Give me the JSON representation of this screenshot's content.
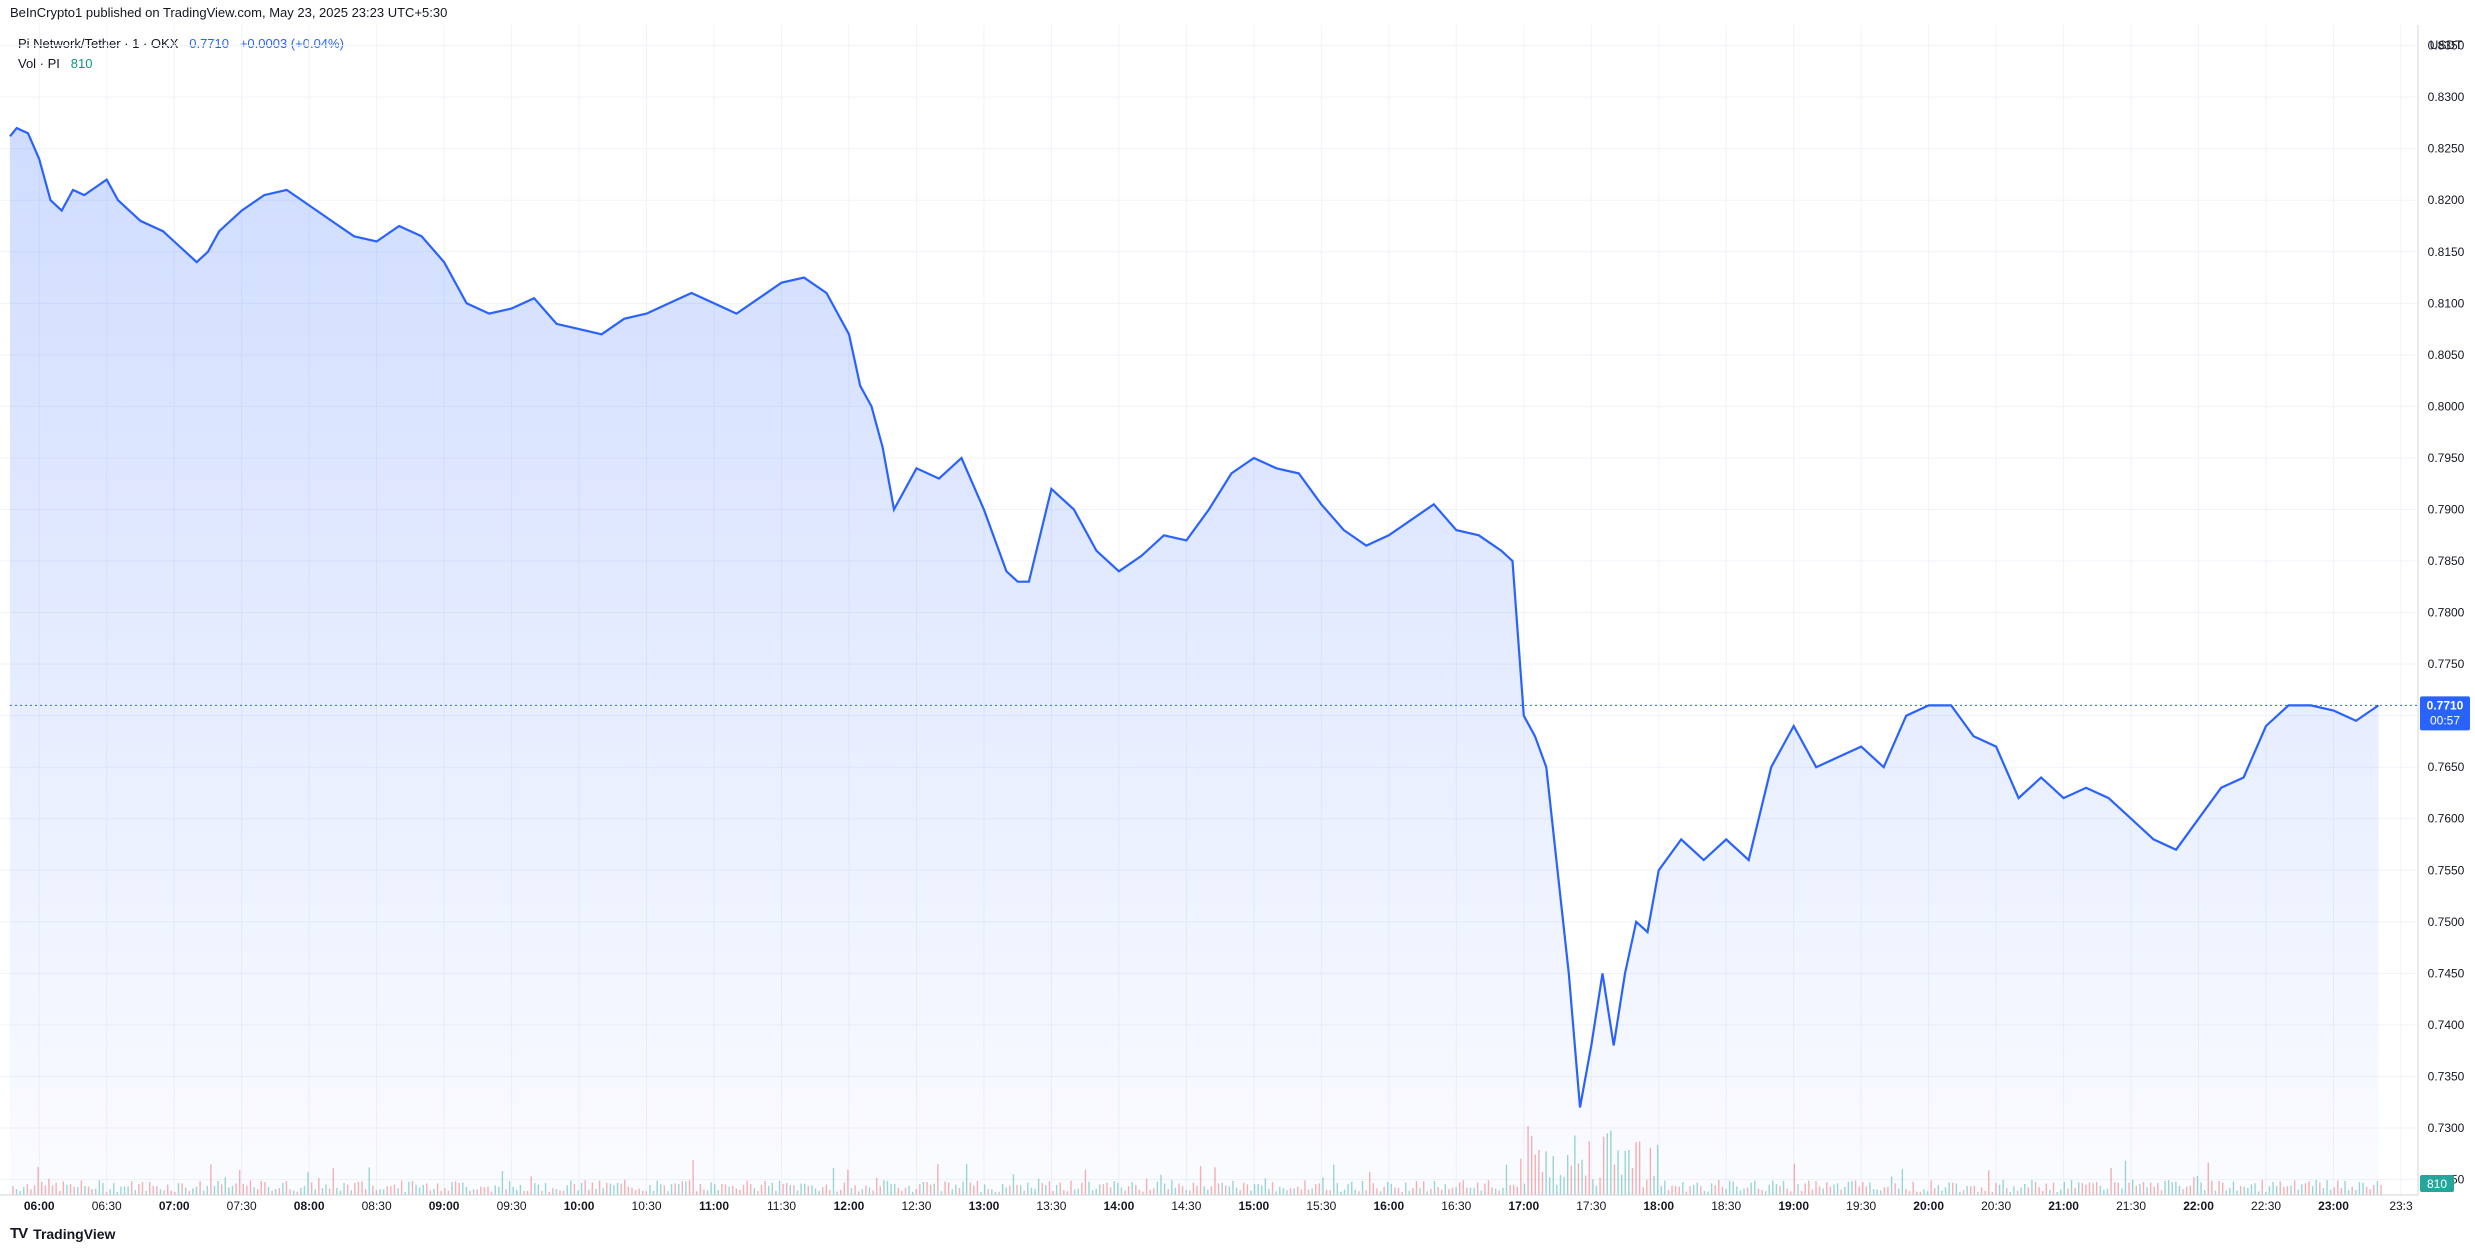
{
  "header": {
    "published": "BeInCrypto1 published on TradingView.com, May 23, 2025 23:23 UTC+5:30"
  },
  "legend": {
    "symbol": "Pi Network/Tether · 1 · OKX",
    "last": "0.7710",
    "change": "+0.0003 (+0.04%)",
    "vol_label": "Vol · PI",
    "vol_value": "810"
  },
  "footer": {
    "brand": "TradingView",
    "logo_mark": "TV"
  },
  "axis": {
    "currency": "USDT"
  },
  "badges": {
    "price": "0.7710",
    "countdown": "00:57",
    "volume": "810"
  },
  "colors": {
    "line": "#2962ff",
    "vol_up": "#26a69a",
    "vol_down": "#ef5350"
  },
  "chart_data": {
    "type": "area",
    "y_ticks": [
      "0.8350",
      "0.8300",
      "0.8250",
      "0.8200",
      "0.8150",
      "0.8100",
      "0.8050",
      "0.8000",
      "0.7950",
      "0.7900",
      "0.7850",
      "0.7800",
      "0.7750",
      "0.7700",
      "0.7650",
      "0.7600",
      "0.7550",
      "0.7500",
      "0.7450",
      "0.7400",
      "0.7350",
      "0.7300",
      "0.7250"
    ],
    "x_ticks": [
      "06:00",
      "06:30",
      "07:00",
      "07:30",
      "08:00",
      "08:30",
      "09:00",
      "09:30",
      "10:00",
      "10:30",
      "11:00",
      "11:30",
      "12:00",
      "12:30",
      "13:00",
      "13:30",
      "14:00",
      "14:30",
      "15:00",
      "15:30",
      "16:00",
      "16:30",
      "17:00",
      "17:30",
      "18:00",
      "18:30",
      "19:00",
      "19:30",
      "20:00",
      "20:30",
      "21:00",
      "21:30",
      "22:00",
      "22:30",
      "23:00",
      "23:3"
    ],
    "ylim": [
      0.7235,
      0.837
    ],
    "xlim": [
      "05:47",
      "23:34"
    ],
    "grid": true,
    "current_price": 0.771,
    "series": [
      {
        "x": [
          "05:45",
          "05:50",
          "05:55",
          "06:00",
          "06:05",
          "06:10",
          "06:15",
          "06:20",
          "06:30",
          "06:35",
          "06:45",
          "06:55",
          "07:00",
          "07:10",
          "07:15",
          "07:20",
          "07:30",
          "07:40",
          "07:50",
          "08:00",
          "08:10",
          "08:20",
          "08:30",
          "08:40",
          "08:50",
          "09:00",
          "09:10",
          "09:20",
          "09:30",
          "09:40",
          "09:50",
          "10:00",
          "10:10",
          "10:20",
          "10:30",
          "10:40",
          "10:50",
          "11:00",
          "11:10",
          "11:20",
          "11:30",
          "11:40",
          "11:50",
          "12:00",
          "12:05",
          "12:10",
          "12:15",
          "12:20",
          "12:30",
          "12:40",
          "12:50",
          "13:00",
          "13:10",
          "13:15",
          "13:20",
          "13:30",
          "13:40",
          "13:50",
          "14:00",
          "14:10",
          "14:20",
          "14:30",
          "14:40",
          "14:50",
          "15:00",
          "15:10",
          "15:20",
          "15:30",
          "15:40",
          "15:50",
          "16:00",
          "16:10",
          "16:20",
          "16:30",
          "16:40",
          "16:50",
          "16:55",
          "17:00",
          "17:05",
          "17:10",
          "17:15",
          "17:20",
          "17:25",
          "17:30",
          "17:35",
          "17:40",
          "17:45",
          "17:50",
          "17:55",
          "18:00",
          "18:10",
          "18:20",
          "18:30",
          "18:40",
          "18:50",
          "19:00",
          "19:10",
          "19:20",
          "19:30",
          "19:40",
          "19:50",
          "20:00",
          "20:10",
          "20:20",
          "20:30",
          "20:40",
          "20:50",
          "21:00",
          "21:10",
          "21:20",
          "21:30",
          "21:40",
          "21:50",
          "22:00",
          "22:10",
          "22:20",
          "22:30",
          "22:40",
          "22:50",
          "23:00",
          "23:10",
          "23:20"
        ],
        "values": [
          0.8262,
          0.827,
          0.8265,
          0.824,
          0.82,
          0.819,
          0.821,
          0.8205,
          0.822,
          0.82,
          0.818,
          0.817,
          0.816,
          0.814,
          0.815,
          0.817,
          0.819,
          0.8205,
          0.821,
          0.8195,
          0.818,
          0.8165,
          0.816,
          0.8175,
          0.8165,
          0.814,
          0.81,
          0.809,
          0.8095,
          0.8105,
          0.808,
          0.8075,
          0.807,
          0.8085,
          0.809,
          0.81,
          0.811,
          0.81,
          0.809,
          0.8105,
          0.812,
          0.8125,
          0.811,
          0.807,
          0.802,
          0.8,
          0.796,
          0.79,
          0.794,
          0.793,
          0.795,
          0.79,
          0.784,
          0.783,
          0.783,
          0.792,
          0.79,
          0.786,
          0.784,
          0.7855,
          0.7875,
          0.787,
          0.79,
          0.7935,
          0.795,
          0.794,
          0.7935,
          0.7905,
          0.788,
          0.7865,
          0.7875,
          0.789,
          0.7905,
          0.788,
          0.7875,
          0.786,
          0.785,
          0.77,
          0.768,
          0.765,
          0.755,
          0.745,
          0.732,
          0.738,
          0.745,
          0.738,
          0.745,
          0.75,
          0.749,
          0.755,
          0.758,
          0.756,
          0.758,
          0.756,
          0.765,
          0.769,
          0.765,
          0.766,
          0.767,
          0.765,
          0.77,
          0.771,
          0.771,
          0.768,
          0.767,
          0.762,
          0.764,
          0.762,
          0.763,
          0.762,
          0.76,
          0.758,
          0.757,
          0.76,
          0.763,
          0.764,
          0.769,
          0.771,
          0.771,
          0.7705,
          0.7695,
          0.771
        ]
      }
    ]
  }
}
